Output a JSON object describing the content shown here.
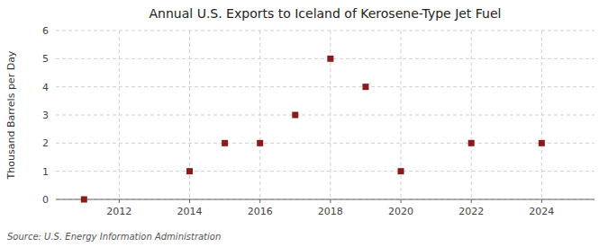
{
  "chart_data": {
    "type": "scatter",
    "title": "Annual U.S. Exports to Iceland of Kerosene-Type Jet Fuel",
    "y_label": "Thousand Barrels per Day",
    "source": "Source: U.S. Energy Information Administration",
    "x": [
      2011,
      2014,
      2015,
      2016,
      2017,
      2018,
      2019,
      2020,
      2022,
      2024
    ],
    "values": [
      0,
      1,
      2,
      2,
      3,
      5,
      4,
      1,
      2,
      2
    ],
    "color": "#8b1a1a",
    "marker": "square",
    "xlim": [
      2010.2,
      2025.5
    ],
    "xticks": [
      2012,
      2014,
      2016,
      2018,
      2020,
      2022,
      2024
    ],
    "ylim": [
      0,
      6
    ],
    "yticks": [
      0,
      1,
      2,
      3,
      4,
      5,
      6
    ],
    "grid": true
  }
}
